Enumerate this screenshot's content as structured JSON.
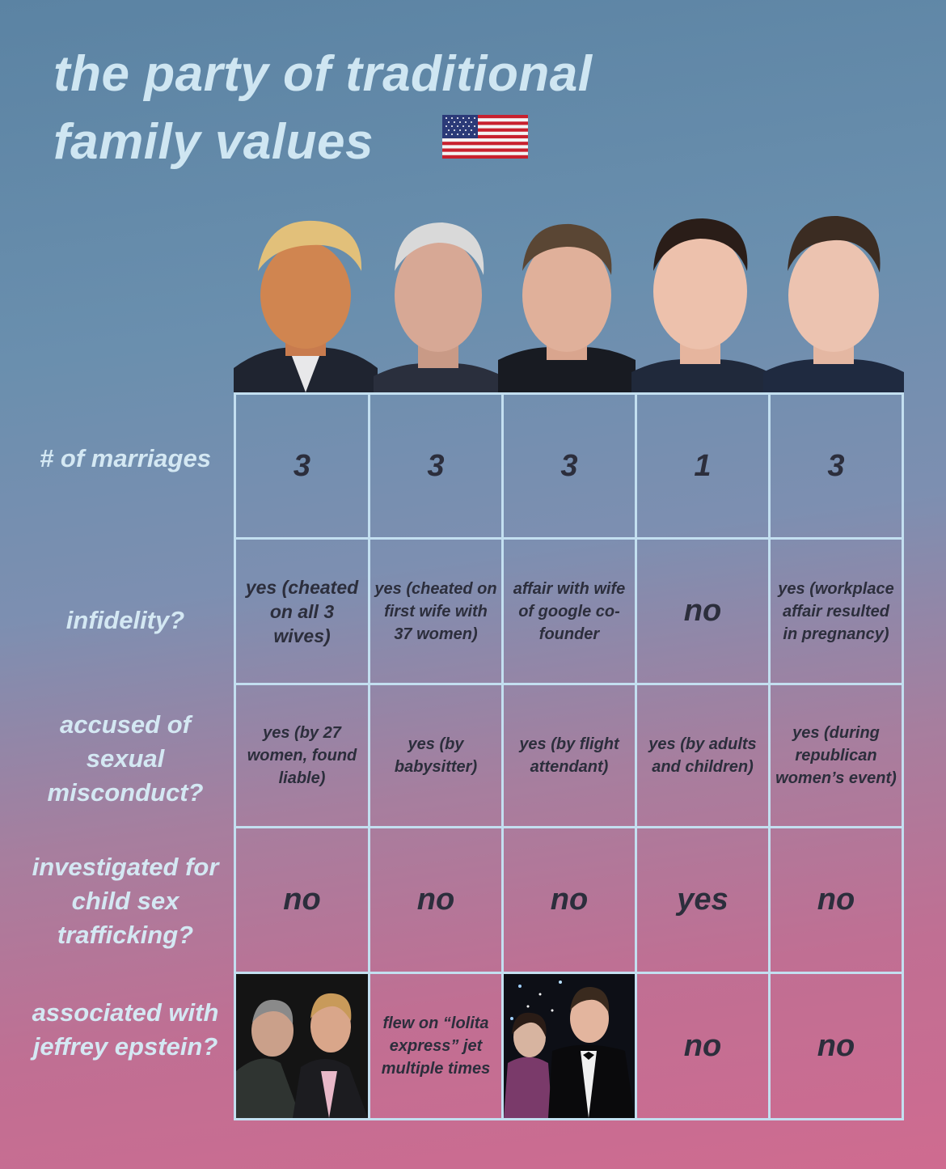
{
  "title": {
    "line1": "the party of traditional",
    "line2": "family values",
    "flag_icon": "us-flag-icon"
  },
  "colors": {
    "label_text": "#d4e8f3",
    "grid_line": "#c3dff0",
    "cell_text": "#2c2e3c"
  },
  "rows": [
    {
      "label": "# of marriages",
      "cells": [
        "3",
        "3",
        "3",
        "1",
        "3"
      ]
    },
    {
      "label": "infidelity?",
      "cells": [
        "yes (cheated on all 3 wives)",
        "yes (cheated on first wife with 37 women)",
        "affair with wife of google co-founder",
        "no",
        "yes (workplace affair resulted in pregnancy)"
      ]
    },
    {
      "label": "accused of sexual misconduct?",
      "cells": [
        "yes (by 27 women, found liable)",
        "yes (by babysitter)",
        "yes (by flight attendant)",
        "yes (by adults and children)",
        "yes (during republican women’s event)"
      ]
    },
    {
      "label": "investigated for child sex trafficking?",
      "cells": [
        "no",
        "no",
        "no",
        "yes",
        "no"
      ]
    },
    {
      "label": "associated with jeffrey epstein?",
      "cells": [
        "",
        "flew on “lolita express” jet multiple times",
        "",
        "no",
        "no"
      ]
    }
  ]
}
